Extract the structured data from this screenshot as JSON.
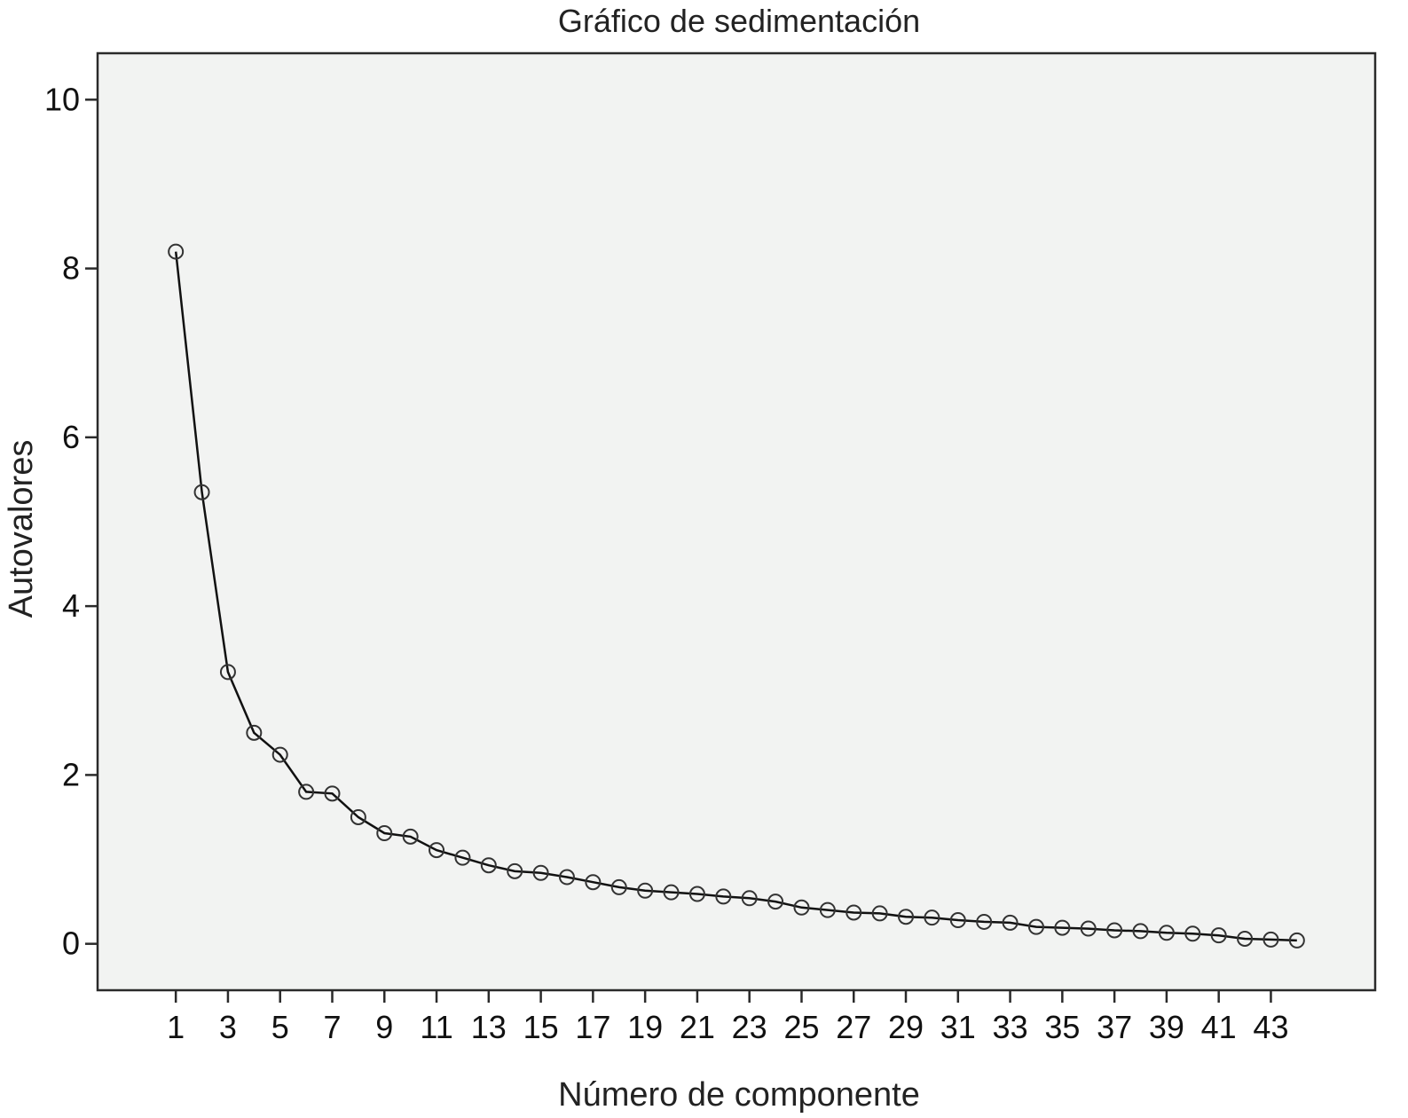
{
  "chart_data": {
    "type": "line",
    "title": "Gráfico de sedimentación",
    "xlabel": "Número de componente",
    "ylabel": "Autovalores",
    "xlim": [
      -2,
      47
    ],
    "ylim": [
      -0.55,
      10.55
    ],
    "yticks": [
      0,
      2,
      4,
      6,
      8,
      10
    ],
    "xticks": [
      1,
      3,
      5,
      7,
      9,
      11,
      13,
      15,
      17,
      19,
      21,
      23,
      25,
      27,
      29,
      31,
      33,
      35,
      37,
      39,
      41,
      43
    ],
    "grid": false,
    "series": [
      {
        "x": [
          1,
          2,
          3,
          4,
          5,
          6,
          7,
          8,
          9,
          10,
          11,
          12,
          13,
          14,
          15,
          16,
          17,
          18,
          19,
          20,
          21,
          22,
          23,
          24,
          25,
          26,
          27,
          28,
          29,
          30,
          31,
          32,
          33,
          34,
          35,
          36,
          37,
          38,
          39,
          40,
          41,
          42,
          43,
          44
        ],
        "values": [
          8.2,
          5.35,
          3.22,
          2.5,
          2.24,
          1.8,
          1.78,
          1.5,
          1.31,
          1.27,
          1.11,
          1.02,
          0.93,
          0.86,
          0.84,
          0.79,
          0.73,
          0.67,
          0.63,
          0.61,
          0.59,
          0.56,
          0.54,
          0.5,
          0.43,
          0.4,
          0.37,
          0.36,
          0.32,
          0.31,
          0.28,
          0.26,
          0.25,
          0.2,
          0.19,
          0.18,
          0.16,
          0.15,
          0.13,
          0.12,
          0.1,
          0.06,
          0.05,
          0.04
        ]
      }
    ]
  }
}
